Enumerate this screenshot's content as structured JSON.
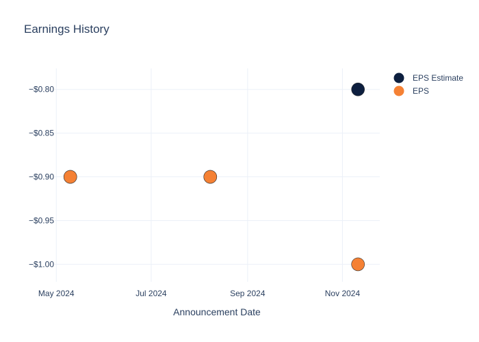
{
  "chart_data": {
    "type": "scatter",
    "title": "Earnings History",
    "xlabel": "Announcement Date",
    "ylabel": "",
    "x_axis": {
      "type": "date",
      "range": [
        "2024-04-30",
        "2024-11-25"
      ],
      "ticks": [
        {
          "date": "2024-05-01",
          "label": "May 2024"
        },
        {
          "date": "2024-07-01",
          "label": "Jul 2024"
        },
        {
          "date": "2024-09-01",
          "label": "Sep 2024"
        },
        {
          "date": "2024-11-01",
          "label": "Nov 2024"
        }
      ]
    },
    "y_axis": {
      "range": [
        -1.02,
        -0.776
      ],
      "ticks": [
        {
          "value": -0.8,
          "label": "−$0.80"
        },
        {
          "value": -0.85,
          "label": "−$0.85"
        },
        {
          "value": -0.9,
          "label": "−$0.90"
        },
        {
          "value": -0.95,
          "label": "−$0.95"
        },
        {
          "value": -1.0,
          "label": "−$1.00"
        }
      ]
    },
    "grid": true,
    "legend_position": "top-right",
    "series": [
      {
        "name": "EPS Estimate",
        "color": "#0d1f3f",
        "points": [
          {
            "x": "2024-05-10",
            "y": -0.9
          },
          {
            "x": "2024-08-08",
            "y": -0.9
          },
          {
            "x": "2024-11-11",
            "y": -0.8
          }
        ]
      },
      {
        "name": "EPS",
        "color": "#f58134",
        "points": [
          {
            "x": "2024-05-10",
            "y": -0.9
          },
          {
            "x": "2024-08-08",
            "y": -0.9
          },
          {
            "x": "2024-11-11",
            "y": -1.0
          }
        ]
      }
    ]
  }
}
